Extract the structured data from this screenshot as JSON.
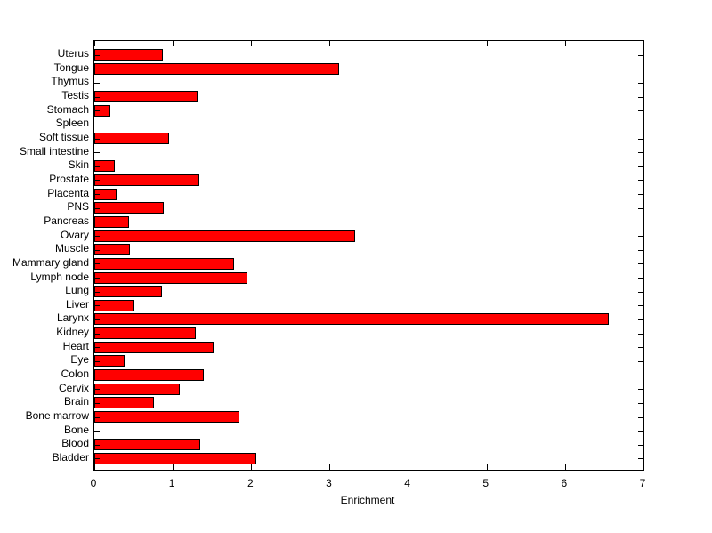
{
  "figure": {
    "background_color": "#ffffff",
    "axis_color": "#000000",
    "bar_fill_color": "#ff0000",
    "bar_border_color": "#000000",
    "text_color": "#000000"
  },
  "chart_data": {
    "type": "bar",
    "orientation": "horizontal",
    "title": "",
    "xlabel": "Enrichment",
    "ylabel": "",
    "xlim": [
      0,
      7
    ],
    "x_ticks": [
      0,
      1,
      2,
      3,
      4,
      5,
      6,
      7
    ],
    "x_tick_labels": [
      "0",
      "1",
      "2",
      "3",
      "4",
      "5",
      "6",
      "7"
    ],
    "grid": false,
    "legend": null,
    "box": true,
    "categories_top_to_bottom": [
      "Uterus",
      "Tongue",
      "Thymus",
      "Testis",
      "Stomach",
      "Spleen",
      "Soft tissue",
      "Small intestine",
      "Skin",
      "Prostate",
      "Placenta",
      "PNS",
      "Pancreas",
      "Ovary",
      "Muscle",
      "Mammary gland",
      "Lymph node",
      "Lung",
      "Liver",
      "Larynx",
      "Kidney",
      "Heart",
      "Eye",
      "Colon",
      "Cervix",
      "Brain",
      "Bone marrow",
      "Bone",
      "Blood",
      "Bladder"
    ],
    "values_top_to_bottom": [
      0.87,
      3.12,
      0,
      1.32,
      0.2,
      0,
      0.95,
      0,
      0.26,
      1.34,
      0.28,
      0.89,
      0.44,
      3.32,
      0.45,
      1.78,
      1.95,
      0.86,
      0.51,
      6.56,
      1.29,
      1.52,
      0.39,
      1.39,
      1.09,
      0.76,
      1.85,
      0,
      1.35,
      2.07
    ]
  }
}
